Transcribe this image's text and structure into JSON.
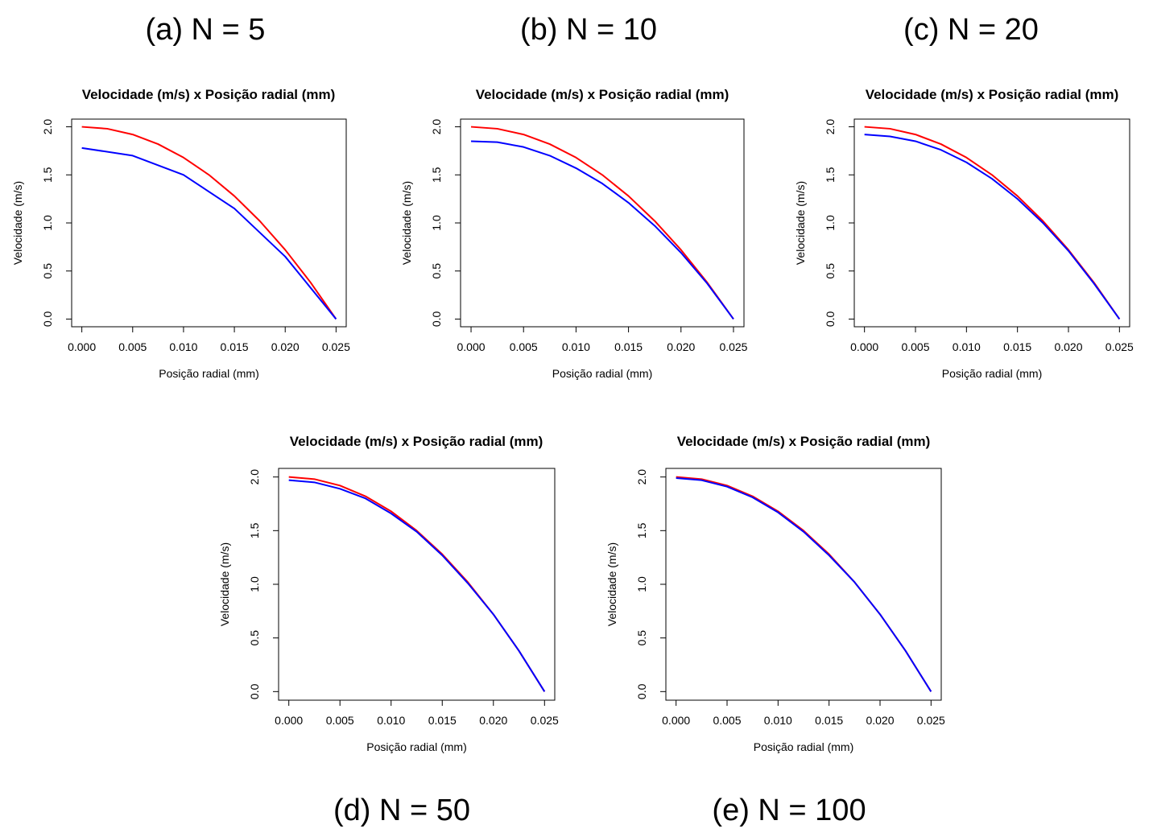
{
  "colors": {
    "analytic": "#ff0000",
    "numeric": "#0000ff",
    "axis": "#000000"
  },
  "chart_data": [
    {
      "type": "line",
      "caption": "(a) N = 5",
      "title": "Velocidade (m/s) x Posição radial (mm)",
      "xlabel": "Posição radial (mm)",
      "ylabel": "Velocidade (m/s)",
      "xlim": [
        0,
        0.025
      ],
      "ylim": [
        0,
        2.0
      ],
      "xticks": [
        "0.000",
        "0.005",
        "0.010",
        "0.015",
        "0.020",
        "0.025"
      ],
      "yticks": [
        "0.0",
        "0.5",
        "1.0",
        "1.5",
        "2.0"
      ],
      "grid": false,
      "series": [
        {
          "color": "#ff0000",
          "x": [
            0,
            0.0025,
            0.005,
            0.0075,
            0.01,
            0.0125,
            0.015,
            0.0175,
            0.02,
            0.0225,
            0.025
          ],
          "y": [
            2.0,
            1.98,
            1.92,
            1.82,
            1.68,
            1.5,
            1.28,
            1.02,
            0.72,
            0.38,
            0.0
          ]
        },
        {
          "color": "#0000ff",
          "x": [
            0,
            0.005,
            0.01,
            0.015,
            0.02,
            0.025
          ],
          "y": [
            1.78,
            1.7,
            1.5,
            1.15,
            0.65,
            0.0
          ]
        }
      ]
    },
    {
      "type": "line",
      "caption": "(b) N = 10",
      "title": "Velocidade (m/s) x Posição radial (mm)",
      "xlabel": "Posição radial (mm)",
      "ylabel": "Velocidade (m/s)",
      "xlim": [
        0,
        0.025
      ],
      "ylim": [
        0,
        2.0
      ],
      "xticks": [
        "0.000",
        "0.005",
        "0.010",
        "0.015",
        "0.020",
        "0.025"
      ],
      "yticks": [
        "0.0",
        "0.5",
        "1.0",
        "1.5",
        "2.0"
      ],
      "grid": false,
      "series": [
        {
          "color": "#ff0000",
          "x": [
            0,
            0.0025,
            0.005,
            0.0075,
            0.01,
            0.0125,
            0.015,
            0.0175,
            0.02,
            0.0225,
            0.025
          ],
          "y": [
            2.0,
            1.98,
            1.92,
            1.82,
            1.68,
            1.5,
            1.28,
            1.02,
            0.72,
            0.38,
            0.0
          ]
        },
        {
          "color": "#0000ff",
          "x": [
            0,
            0.0025,
            0.005,
            0.0075,
            0.01,
            0.0125,
            0.015,
            0.0175,
            0.02,
            0.0225,
            0.025
          ],
          "y": [
            1.85,
            1.84,
            1.79,
            1.7,
            1.57,
            1.41,
            1.21,
            0.97,
            0.69,
            0.37,
            0.0
          ]
        }
      ]
    },
    {
      "type": "line",
      "caption": "(c) N = 20",
      "title": "Velocidade (m/s) x Posição radial (mm)",
      "xlabel": "Posição radial (mm)",
      "ylabel": "Velocidade (m/s)",
      "xlim": [
        0,
        0.025
      ],
      "ylim": [
        0,
        2.0
      ],
      "xticks": [
        "0.000",
        "0.005",
        "0.010",
        "0.015",
        "0.020",
        "0.025"
      ],
      "yticks": [
        "0.0",
        "0.5",
        "1.0",
        "1.5",
        "2.0"
      ],
      "grid": false,
      "series": [
        {
          "color": "#ff0000",
          "x": [
            0,
            0.0025,
            0.005,
            0.0075,
            0.01,
            0.0125,
            0.015,
            0.0175,
            0.02,
            0.0225,
            0.025
          ],
          "y": [
            2.0,
            1.98,
            1.92,
            1.82,
            1.68,
            1.5,
            1.28,
            1.02,
            0.72,
            0.38,
            0.0
          ]
        },
        {
          "color": "#0000ff",
          "x": [
            0,
            0.0025,
            0.005,
            0.0075,
            0.01,
            0.0125,
            0.015,
            0.0175,
            0.02,
            0.0225,
            0.025
          ],
          "y": [
            1.92,
            1.9,
            1.85,
            1.76,
            1.63,
            1.46,
            1.25,
            1.0,
            0.71,
            0.37,
            0.0
          ]
        }
      ]
    },
    {
      "type": "line",
      "caption": "(d) N = 50",
      "title": "Velocidade (m/s) x Posição radial (mm)",
      "xlabel": "Posição radial (mm)",
      "ylabel": "Velocidade (m/s)",
      "xlim": [
        0,
        0.025
      ],
      "ylim": [
        0,
        2.0
      ],
      "xticks": [
        "0.000",
        "0.005",
        "0.010",
        "0.015",
        "0.020",
        "0.025"
      ],
      "yticks": [
        "0.0",
        "0.5",
        "1.0",
        "1.5",
        "2.0"
      ],
      "grid": false,
      "series": [
        {
          "color": "#ff0000",
          "x": [
            0,
            0.0025,
            0.005,
            0.0075,
            0.01,
            0.0125,
            0.015,
            0.0175,
            0.02,
            0.0225,
            0.025
          ],
          "y": [
            2.0,
            1.98,
            1.92,
            1.82,
            1.68,
            1.5,
            1.28,
            1.02,
            0.72,
            0.38,
            0.0
          ]
        },
        {
          "color": "#0000ff",
          "x": [
            0,
            0.0025,
            0.005,
            0.0075,
            0.01,
            0.0125,
            0.015,
            0.0175,
            0.02,
            0.0225,
            0.025
          ],
          "y": [
            1.97,
            1.95,
            1.89,
            1.8,
            1.66,
            1.49,
            1.27,
            1.01,
            0.72,
            0.38,
            0.0
          ]
        }
      ]
    },
    {
      "type": "line",
      "caption": "(e) N = 100",
      "title": "Velocidade (m/s) x Posição radial (mm)",
      "xlabel": "Posição radial (mm)",
      "ylabel": "Velocidade (m/s)",
      "xlim": [
        0,
        0.025
      ],
      "ylim": [
        0,
        2.0
      ],
      "xticks": [
        "0.000",
        "0.005",
        "0.010",
        "0.015",
        "0.020",
        "0.025"
      ],
      "yticks": [
        "0.0",
        "0.5",
        "1.0",
        "1.5",
        "2.0"
      ],
      "grid": false,
      "series": [
        {
          "color": "#ff0000",
          "x": [
            0,
            0.0025,
            0.005,
            0.0075,
            0.01,
            0.0125,
            0.015,
            0.0175,
            0.02,
            0.0225,
            0.025
          ],
          "y": [
            2.0,
            1.98,
            1.92,
            1.82,
            1.68,
            1.5,
            1.28,
            1.02,
            0.72,
            0.38,
            0.0
          ]
        },
        {
          "color": "#0000ff",
          "x": [
            0,
            0.0025,
            0.005,
            0.0075,
            0.01,
            0.0125,
            0.015,
            0.0175,
            0.02,
            0.0225,
            0.025
          ],
          "y": [
            1.99,
            1.97,
            1.91,
            1.81,
            1.67,
            1.49,
            1.27,
            1.02,
            0.72,
            0.38,
            0.0
          ]
        }
      ]
    }
  ]
}
